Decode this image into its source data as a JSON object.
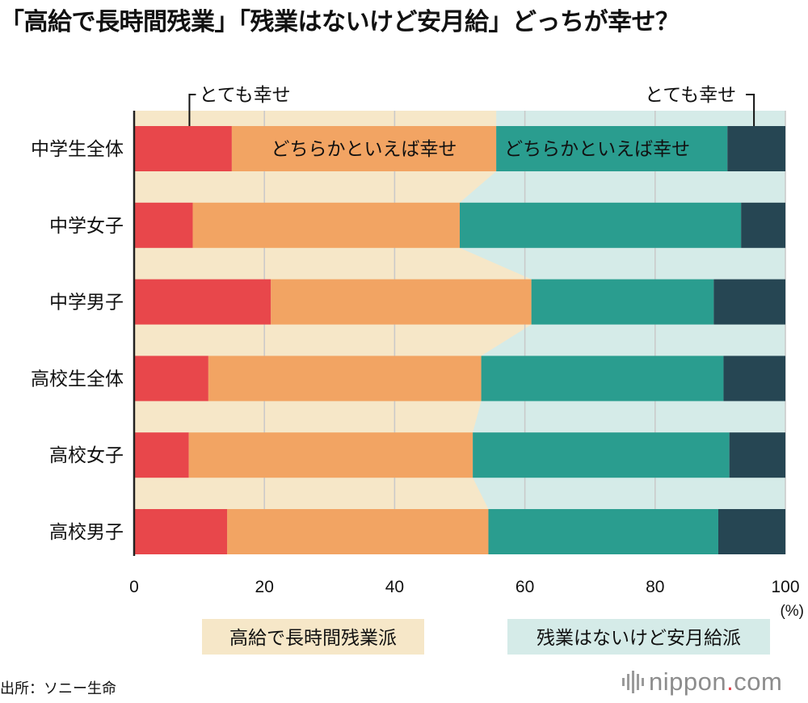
{
  "chart_data": {
    "type": "bar",
    "orientation": "horizontal",
    "stacked": true,
    "title": "「高給で長時間残業」「残業はないけど安月給」どっちが幸せ？",
    "categories": [
      "中学生全体",
      "中学女子",
      "中学男子",
      "高校生全体",
      "高校女子",
      "高校男子"
    ],
    "series": [
      {
        "name": "とても幸せ",
        "group": "高給で長時間残業派",
        "color": "#e8474b",
        "values": [
          15,
          9,
          21,
          11.4,
          8.4,
          14.3
        ]
      },
      {
        "name": "どちらかといえば幸せ",
        "group": "高給で長時間残業派",
        "color": "#f2a463",
        "values": [
          40.6,
          41,
          40,
          41.9,
          43.6,
          40.1
        ]
      },
      {
        "name": "どちらかといえば幸せ",
        "group": "残業はないけど安月給派",
        "color": "#2a9d8f",
        "values": [
          35.5,
          43.2,
          28,
          37.2,
          39.4,
          35.3
        ]
      },
      {
        "name": "とても幸せ",
        "group": "残業はないけど安月給派",
        "color": "#264653",
        "values": [
          8.9,
          6.8,
          11,
          9.5,
          8.6,
          10.3
        ]
      }
    ],
    "xlim": [
      0,
      100
    ],
    "xticks": [
      "0",
      "20",
      "40",
      "60",
      "80",
      "100"
    ],
    "xunit": "(%)",
    "grid": true,
    "annotations": {
      "left_very_happy": "とても幸せ",
      "right_very_happy": "とても幸せ",
      "left_somewhat_happy": "どちらかといえば幸せ",
      "right_somewhat_happy": "どちらかといえば幸せ"
    },
    "legend": [
      {
        "label": "高給で長時間残業派",
        "color": "#f6e7c8"
      },
      {
        "label": "残業はないけど安月給派",
        "color": "#d5ebe8"
      }
    ]
  },
  "source": "出所：ソニー生命",
  "logo": {
    "name": "nippon",
    "dot": ".",
    "tld": "com"
  }
}
